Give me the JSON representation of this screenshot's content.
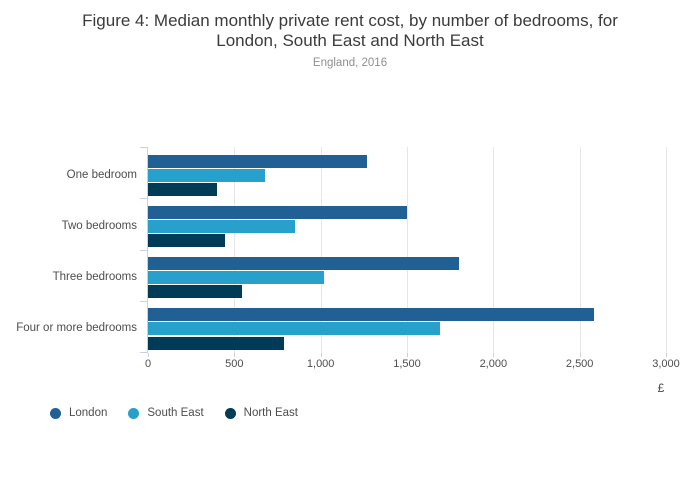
{
  "header": {
    "title_line1": "Figure 4: Median monthly private rent cost, by number of bedrooms, for",
    "title_line2": "London, South East and North East",
    "subtitle": "England, 2016"
  },
  "chart_data": {
    "type": "bar",
    "orientation": "horizontal",
    "title": "Figure 4: Median monthly private rent cost, by number of bedrooms, for London, South East and North East",
    "subtitle": "England, 2016",
    "categories": [
      "One bedroom",
      "Two bedrooms",
      "Three bedrooms",
      "Four or more bedrooms"
    ],
    "series": [
      {
        "name": "London",
        "color": "#206095",
        "values": [
          1270,
          1500,
          1800,
          2585
        ]
      },
      {
        "name": "South East",
        "color": "#27a0cc",
        "values": [
          675,
          850,
          1020,
          1690
        ]
      },
      {
        "name": "North East",
        "color": "#003c57",
        "values": [
          400,
          445,
          545,
          790
        ]
      }
    ],
    "xlabel": "£",
    "x_ticks": [
      "0",
      "500",
      "1,000",
      "1,500",
      "2,000",
      "2,500",
      "3,000"
    ],
    "x_tick_values": [
      0,
      500,
      1000,
      1500,
      2000,
      2500,
      3000
    ],
    "xlim": [
      0,
      3000
    ],
    "grid": true,
    "legend_position": "bottom-left"
  },
  "colors": {
    "axis_line": "#c9d2e4",
    "gridline": "#e6e6e6",
    "tick_text": "#4d4d4d",
    "title_text": "#3b3b3b",
    "subtitle_text": "#8f8f8f"
  }
}
